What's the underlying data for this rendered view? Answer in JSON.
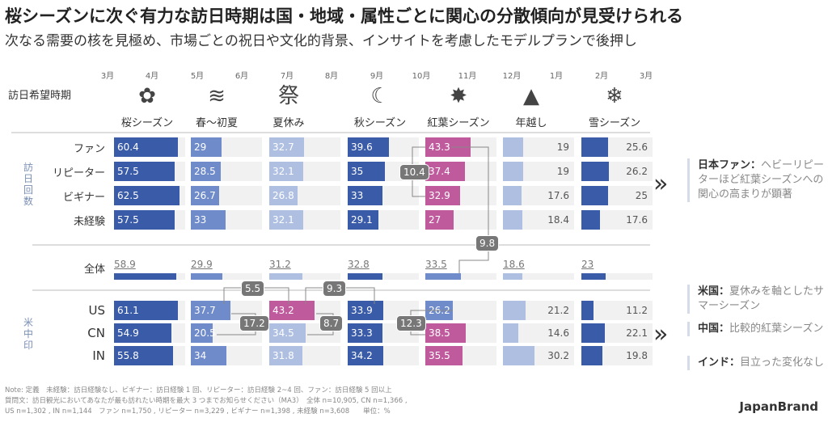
{
  "title": "桜シーズンに次ぐ有力な訪日時期は国・地域・属性ごとに関心の分散傾向が見受けられる",
  "subtitle": "次なる需要の核を見極め、市場ごとの祝日や文化的背景、インサイトを考慮したモデルプランで後押し",
  "header_label": "訪日希望時期",
  "months": [
    "3月",
    "4月",
    "5月",
    "6月",
    "7月",
    "8月",
    "9月",
    "10月",
    "11月",
    "12月",
    "1月",
    "2月",
    "3月"
  ],
  "icons": [
    "cherry-blossom-icon",
    "koinobori-icon",
    "festival-happi-icon",
    "autumn-moon-icon",
    "maple-leaf-icon",
    "kagami-mochi-icon",
    "snowflake-icon"
  ],
  "group_labels": {
    "japan": "訪日回数",
    "market": "米中印"
  },
  "colors": {
    "dark": "#3a5ca8",
    "medium": "#6f8bca",
    "light": "#aebfe2",
    "pink": "#bf5a9d",
    "track": "#f1f1f1"
  },
  "chart_data": {
    "type": "bar",
    "title": "訪日希望時期",
    "unit": "%",
    "categories": [
      "桜シーズン",
      "春〜初夏",
      "夏休み",
      "秋シーズン",
      "紅葉シーズン",
      "年越し",
      "雪シーズン"
    ],
    "series": [
      {
        "name": "ファン",
        "values": [
          60.4,
          29,
          32.7,
          39.6,
          43.3,
          19,
          25.6
        ],
        "colors": [
          "dark",
          "medium",
          "light",
          "dark",
          "pink",
          "light",
          "dark"
        ]
      },
      {
        "name": "リピーター",
        "values": [
          57.5,
          28.5,
          32.1,
          35,
          37.4,
          19,
          26.2
        ],
        "colors": [
          "dark",
          "medium",
          "light",
          "dark",
          "pink",
          "light",
          "dark"
        ]
      },
      {
        "name": "ビギナー",
        "values": [
          62.5,
          26.7,
          26.8,
          33,
          32.9,
          17.6,
          25
        ],
        "colors": [
          "dark",
          "medium",
          "light",
          "dark",
          "pink",
          "light",
          "dark"
        ]
      },
      {
        "name": "未経験",
        "values": [
          57.5,
          33,
          32.1,
          29.1,
          27,
          18.4,
          17.6
        ],
        "colors": [
          "dark",
          "medium",
          "light",
          "dark",
          "pink",
          "light",
          "dark"
        ]
      },
      {
        "name": "全体",
        "values": [
          58.9,
          29.9,
          31.2,
          32.8,
          33.5,
          18.6,
          23
        ],
        "colors": [
          "dark",
          "medium",
          "light",
          "dark",
          "medium",
          "light",
          "dark"
        ]
      },
      {
        "name": "US",
        "values": [
          61.1,
          37.7,
          43.2,
          33.9,
          26.2,
          21.2,
          11.2
        ],
        "colors": [
          "dark",
          "medium",
          "pink",
          "dark",
          "medium",
          "light",
          "dark"
        ]
      },
      {
        "name": "CN",
        "values": [
          54.9,
          20.5,
          34.5,
          33.3,
          38.5,
          14.6,
          22.1
        ],
        "colors": [
          "dark",
          "medium",
          "light",
          "dark",
          "pink",
          "light",
          "dark"
        ]
      },
      {
        "name": "IN",
        "values": [
          55.8,
          34,
          31.8,
          34.2,
          35.5,
          30.2,
          19.8
        ],
        "colors": [
          "dark",
          "medium",
          "light",
          "dark",
          "pink",
          "light",
          "dark"
        ]
      }
    ],
    "differences": [
      "10.4",
      "9.8",
      "5.5",
      "9.3",
      "17.2",
      "8.7",
      "12.3"
    ]
  },
  "insights": [
    {
      "head": "日本ファン：",
      "body": "ヘビーリピーターほど紅葉シーズンへの関心の高まりが顕著"
    },
    {
      "head": "米国：",
      "body": "夏休みを軸としたサマーシーズン"
    },
    {
      "head": "中国：",
      "body": "比較的紅葉シーズン"
    },
    {
      "head": "インド：",
      "body": "目立った変化なし"
    }
  ],
  "arrow": "»",
  "notes": [
    "Note: 定義　未経験：訪日経験なし、ビギナー：訪日経験 1 回、リピーター：訪日経験 2~4 回、ファン：訪日経験 5 回以上",
    "質問文：訪日観光においてあなたが最も訪れたい時期を最大 3 つまでお知らせください（MA3）　全体 n=10,905, CN n=1,366 ,",
    "US n=1,302 , IN n=1,144　ファン n=1,750 , リピーター n=3,229 , ビギナー n=1,398 , 未経験 n=3,608　　単位：%"
  ],
  "brand": "JapanBrand"
}
